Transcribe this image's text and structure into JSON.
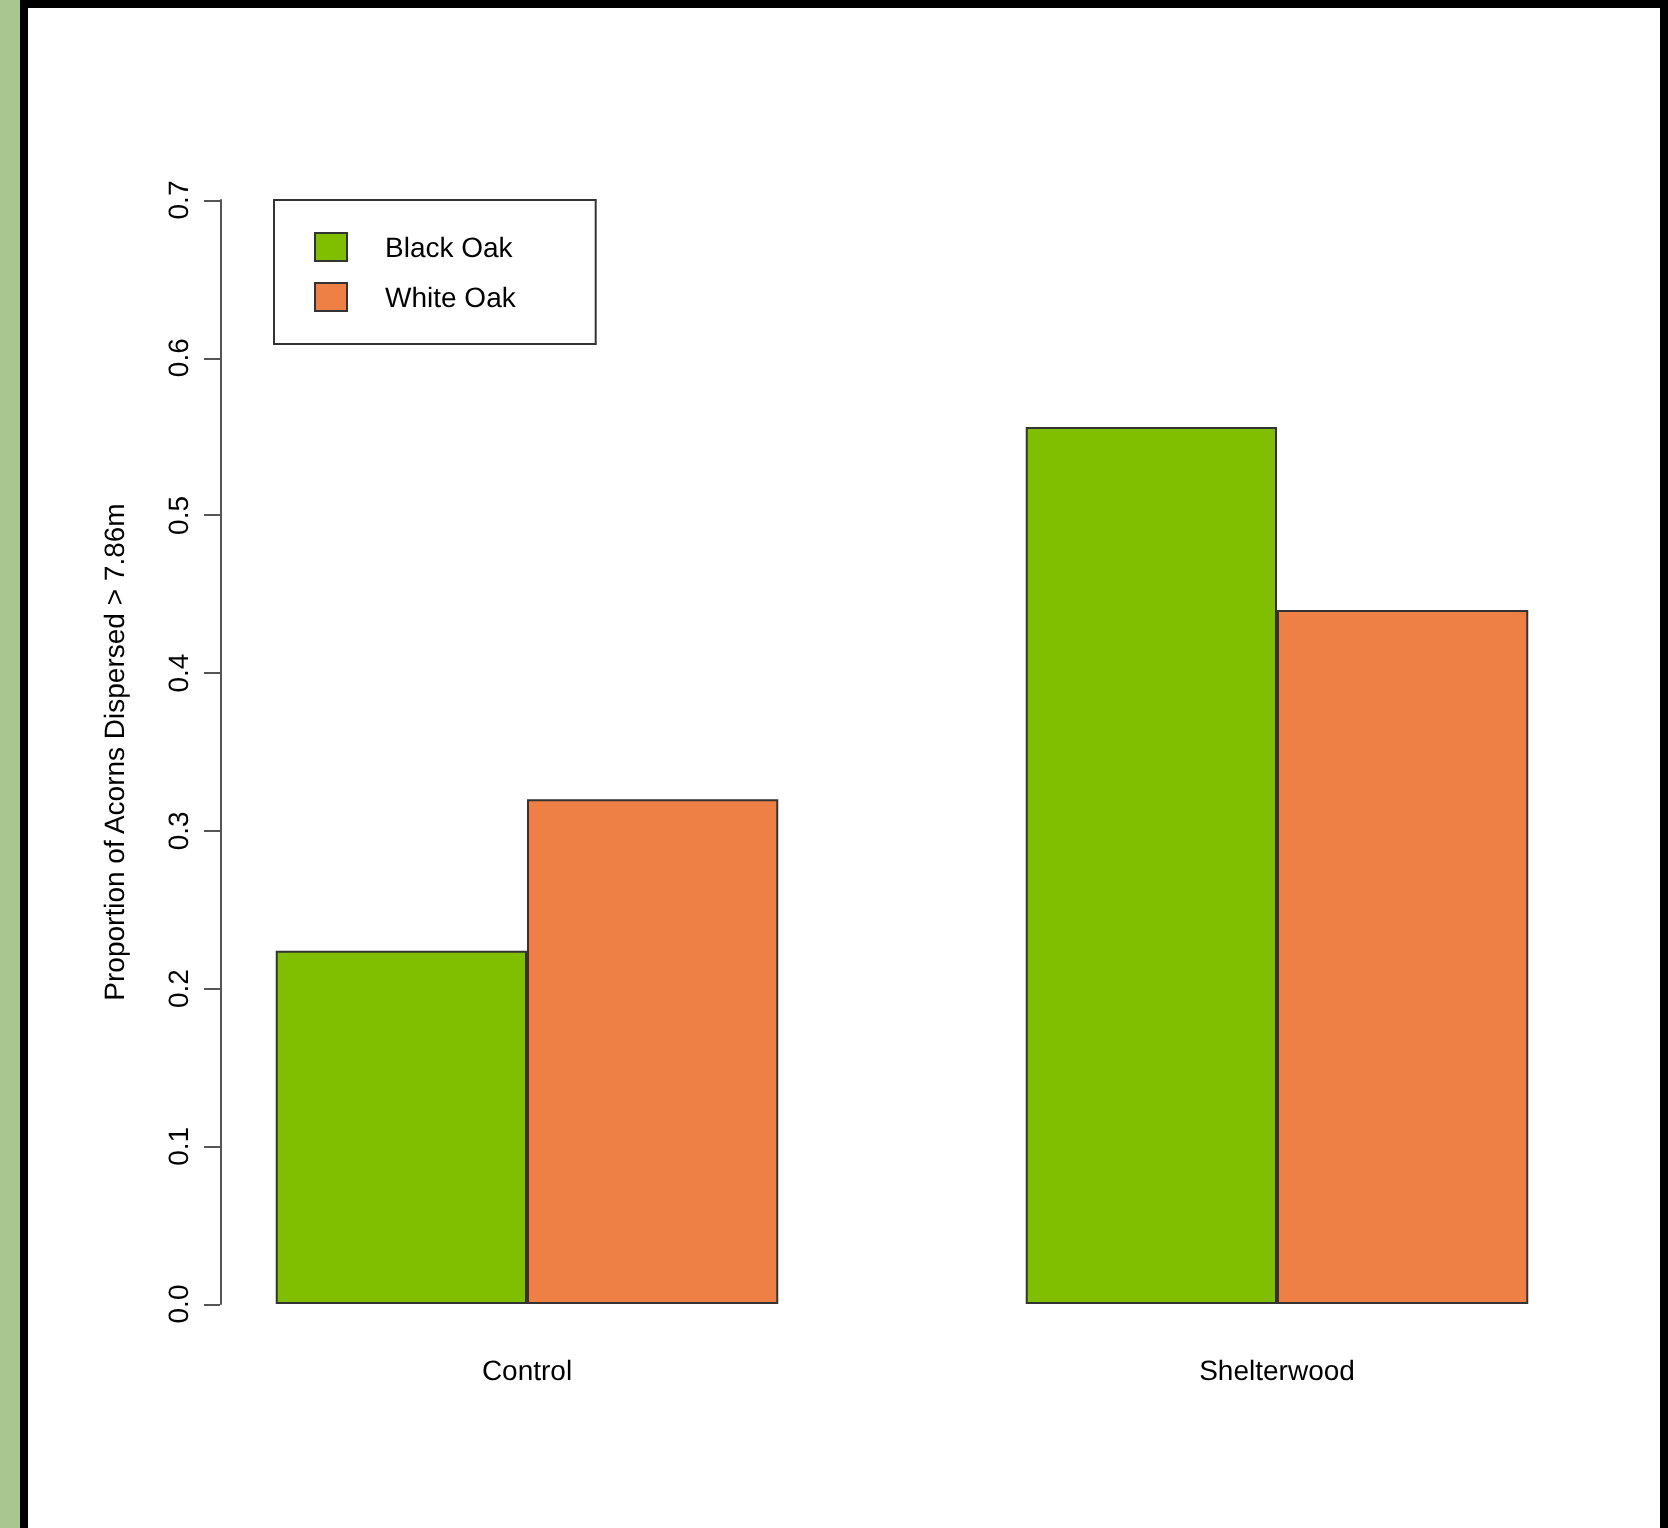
{
  "chart_data": {
    "type": "bar",
    "ylabel": "Proportion of Acorns Dispersed > 7.86m",
    "categories": [
      "Control",
      "Shelterwood"
    ],
    "series": [
      {
        "name": "Black Oak",
        "color": "#7fbf00",
        "values": [
          0.224,
          0.556
        ]
      },
      {
        "name": "White Oak",
        "color": "#ef8045",
        "values": [
          0.32,
          0.44
        ]
      }
    ],
    "ylim": [
      0,
      0.7
    ],
    "yticks": [
      "0.0",
      0.1,
      0.2,
      0.3,
      0.4,
      0.5,
      0.6,
      0.7
    ],
    "grid": false,
    "legend": "top left"
  }
}
